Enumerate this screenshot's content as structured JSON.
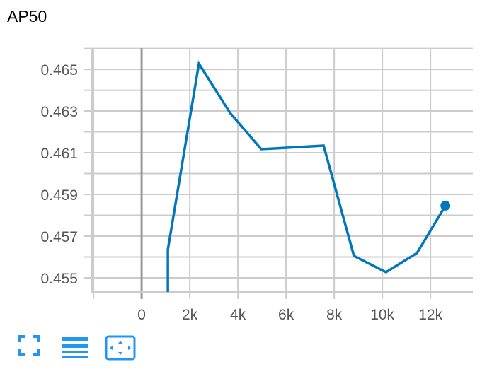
{
  "chart_data": {
    "type": "line",
    "title": "AP50",
    "xlabel": "",
    "ylabel": "",
    "xlim": [
      -2120,
      13760
    ],
    "ylim": [
      0.45432,
      0.46602
    ],
    "x_ticks": [
      "0",
      "2k",
      "4k",
      "6k",
      "8k",
      "10k",
      "12k"
    ],
    "x_tick_values": [
      0,
      2000,
      4000,
      6000,
      8000,
      10000,
      12000
    ],
    "y_ticks": [
      "0.455",
      "0.457",
      "0.459",
      "0.461",
      "0.463",
      "0.465"
    ],
    "y_tick_values": [
      0.455,
      0.457,
      0.459,
      0.461,
      0.463,
      0.465
    ],
    "grid": true,
    "color": "#0077bb",
    "series": [
      {
        "x": [
          1090,
          1090,
          2380,
          3680,
          4970,
          7560,
          8820,
          10150,
          11440,
          12620
        ],
        "y": [
          0.4543,
          0.45636,
          0.46527,
          0.4629,
          0.46117,
          0.46134,
          0.45605,
          0.45527,
          0.45619,
          0.45846
        ]
      }
    ]
  },
  "toolbar": {
    "icons": [
      "fullscreen-icon",
      "toggle-log-scale-icon",
      "fit-domain-icon"
    ],
    "color": "#2196f3"
  }
}
